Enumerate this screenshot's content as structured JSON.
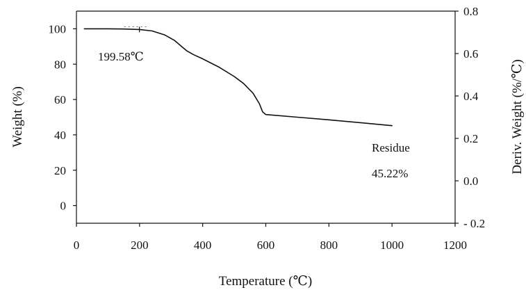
{
  "chart_data": {
    "type": "line",
    "title": "",
    "xlabel": "Temperature (℃)",
    "ylabel": "Weight (%)",
    "y2label": "Deriv. Weight (%/℃)",
    "xlim": [
      0,
      1200
    ],
    "ylim": [
      -10,
      110
    ],
    "y2lim": [
      -0.2,
      0.8
    ],
    "x_ticks": [
      0,
      200,
      400,
      600,
      800,
      1000,
      1200
    ],
    "y_ticks": [
      0,
      20,
      40,
      60,
      80,
      100
    ],
    "y2_ticks": [
      -0.2,
      0.0,
      0.2,
      0.4,
      0.6,
      0.8
    ],
    "x_tick_labels": [
      "0",
      "200",
      "400",
      "600",
      "800",
      "1000",
      "1200"
    ],
    "y_tick_labels": [
      "0",
      "20",
      "40",
      "60",
      "80",
      "100"
    ],
    "y2_tick_labels": [
      "- 0.2",
      "0.0",
      "0.2",
      "0.4",
      "0.6",
      "0.8"
    ],
    "grid": false,
    "series": [
      {
        "x": [
          25,
          100,
          150,
          200,
          240,
          280,
          310,
          330,
          350,
          370,
          400,
          450,
          500,
          530,
          560,
          580,
          590,
          600,
          700,
          800,
          900,
          1000
        ],
        "y": [
          100,
          100,
          99.9,
          99.6,
          98.8,
          96.5,
          93.5,
          90.5,
          87.5,
          85.5,
          83,
          78.5,
          73,
          69,
          63.5,
          57.5,
          53,
          51.5,
          50,
          48.5,
          46.9,
          45.2
        ]
      }
    ],
    "annotations": [
      {
        "text": "199.58℃",
        "x": 199.58,
        "y": 99.6
      },
      {
        "text": "Residue",
        "x": 1000,
        "y": 45.22
      },
      {
        "text": "45.22%",
        "x": 1000,
        "y": 45.22
      }
    ]
  }
}
